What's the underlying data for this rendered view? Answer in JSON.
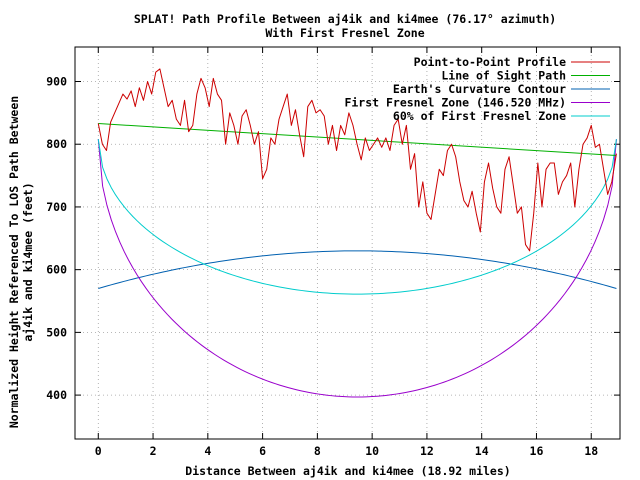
{
  "chart_data": {
    "type": "line",
    "title": "SPLAT! Path Profile Between aj4ik and ki4mee (76.17° azimuth)",
    "subtitle": "With First Fresnel Zone",
    "xlabel": "Distance Between aj4ik and ki4mee (18.92 miles)",
    "ylabel_line1": "Normalized Height Referenced To LOS Path Between",
    "ylabel_line2": "aj4ik and ki4mee (feet)",
    "xlim": [
      -0.85,
      19.05
    ],
    "ylim": [
      330,
      955
    ],
    "x_ticks": [
      0,
      2,
      4,
      6,
      8,
      10,
      12,
      14,
      16,
      18
    ],
    "x_tick_labels": [
      "0",
      "2",
      "4",
      "6",
      "8",
      "10",
      "12",
      "14",
      "16",
      "18"
    ],
    "y_ticks": [
      400,
      500,
      600,
      700,
      800,
      900
    ],
    "y_tick_labels": [
      "400",
      "500",
      "600",
      "700",
      "800",
      "900"
    ],
    "grid": true,
    "legend_position": "top-right",
    "path_length_miles": 18.92,
    "series": [
      {
        "name": "Point-to-Point Profile",
        "color": "#cc0000",
        "x": [
          0,
          0.15,
          0.3,
          0.45,
          0.6,
          0.75,
          0.9,
          1.05,
          1.2,
          1.35,
          1.5,
          1.65,
          1.8,
          1.95,
          2.1,
          2.25,
          2.4,
          2.55,
          2.7,
          2.85,
          3.0,
          3.15,
          3.3,
          3.45,
          3.6,
          3.75,
          3.9,
          4.05,
          4.2,
          4.35,
          4.5,
          4.65,
          4.8,
          4.95,
          5.1,
          5.25,
          5.4,
          5.55,
          5.7,
          5.85,
          6.0,
          6.15,
          6.3,
          6.45,
          6.6,
          6.75,
          6.9,
          7.05,
          7.2,
          7.35,
          7.5,
          7.65,
          7.8,
          7.95,
          8.1,
          8.25,
          8.4,
          8.55,
          8.7,
          8.85,
          9.0,
          9.15,
          9.3,
          9.45,
          9.6,
          9.75,
          9.9,
          10.05,
          10.2,
          10.35,
          10.5,
          10.65,
          10.8,
          10.95,
          11.1,
          11.25,
          11.4,
          11.55,
          11.7,
          11.85,
          12.0,
          12.15,
          12.3,
          12.45,
          12.6,
          12.75,
          12.9,
          13.05,
          13.2,
          13.35,
          13.5,
          13.65,
          13.8,
          13.95,
          14.1,
          14.25,
          14.4,
          14.55,
          14.7,
          14.85,
          15.0,
          15.15,
          15.3,
          15.45,
          15.6,
          15.75,
          15.9,
          16.05,
          16.2,
          16.35,
          16.5,
          16.65,
          16.8,
          16.95,
          17.1,
          17.25,
          17.4,
          17.55,
          17.7,
          17.85,
          18.0,
          18.15,
          18.3,
          18.45,
          18.6,
          18.75,
          18.92
        ],
        "y": [
          833,
          800,
          790,
          835,
          850,
          865,
          880,
          872,
          885,
          860,
          890,
          870,
          900,
          880,
          915,
          920,
          890,
          860,
          870,
          840,
          830,
          870,
          820,
          830,
          880,
          905,
          890,
          860,
          905,
          880,
          870,
          800,
          850,
          830,
          800,
          845,
          855,
          830,
          800,
          820,
          745,
          760,
          810,
          800,
          840,
          860,
          880,
          830,
          855,
          815,
          780,
          860,
          870,
          850,
          855,
          845,
          800,
          830,
          790,
          830,
          815,
          850,
          830,
          800,
          775,
          810,
          790,
          800,
          810,
          795,
          810,
          790,
          830,
          840,
          800,
          830,
          760,
          785,
          700,
          740,
          690,
          680,
          720,
          760,
          750,
          790,
          800,
          780,
          740,
          710,
          700,
          725,
          690,
          660,
          740,
          770,
          730,
          700,
          690,
          760,
          780,
          735,
          690,
          700,
          640,
          630,
          690,
          770,
          700,
          760,
          770,
          770,
          720,
          740,
          750,
          770,
          700,
          760,
          800,
          810,
          830,
          795,
          800,
          760,
          720,
          740,
          785
        ]
      },
      {
        "name": "Line of Sight Path",
        "color": "#00b000",
        "x": [
          0,
          18.92
        ],
        "y": [
          833,
          782
        ]
      },
      {
        "name": "Earth's Curvature Contour",
        "color": "#0060b0",
        "curve": "parabola",
        "end_value": 570,
        "peak_value": 630
      },
      {
        "name": "First Fresnel Zone (146.520 MHz)",
        "color": "#9900cc",
        "curve": "ellipse",
        "end_value": 808,
        "min_value": 397
      },
      {
        "name": "60% of First Fresnel Zone",
        "color": "#00cccc",
        "curve": "ellipse",
        "end_value": 808,
        "min_value": 561
      }
    ]
  }
}
